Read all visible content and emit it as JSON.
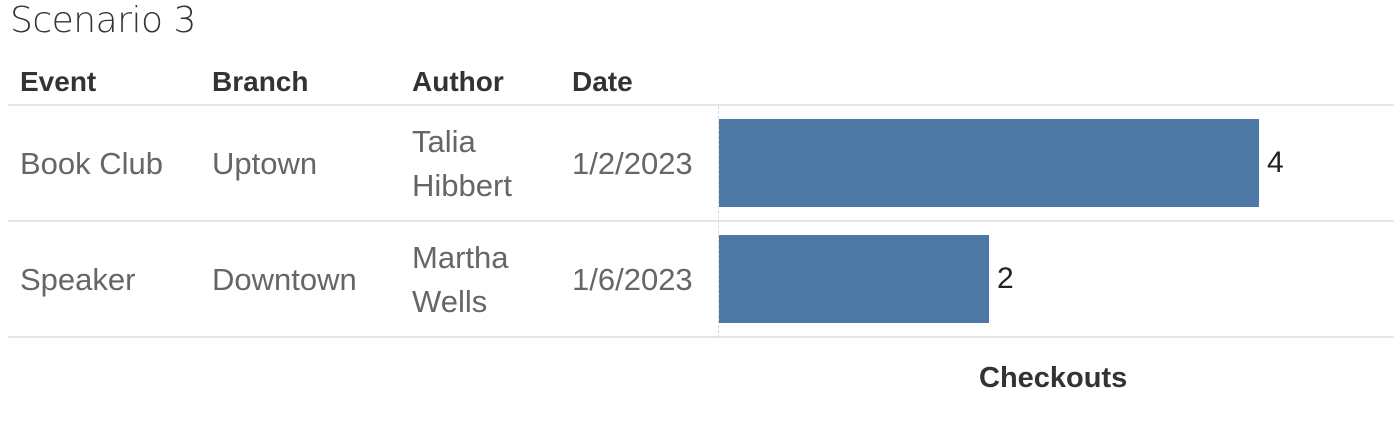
{
  "title": "Scenario 3",
  "chart_data": {
    "type": "bar",
    "orientation": "horizontal",
    "columns": [
      "Event",
      "Branch",
      "Author",
      "Date"
    ],
    "rows": [
      {
        "event": "Book Club",
        "branch": "Uptown",
        "author": [
          "Talia",
          "Hibbert"
        ],
        "date": "1/2/2023",
        "checkouts": 4,
        "label": "4"
      },
      {
        "event": "Speaker",
        "branch": "Downtown",
        "author": [
          "Martha",
          "Wells"
        ],
        "date": "1/6/2023",
        "checkouts": 2,
        "label": "2"
      }
    ],
    "xlabel": "Checkouts",
    "xlim": [
      0,
      5
    ],
    "bar_color": "#4e79a7",
    "data_labels": true,
    "grid": false
  }
}
